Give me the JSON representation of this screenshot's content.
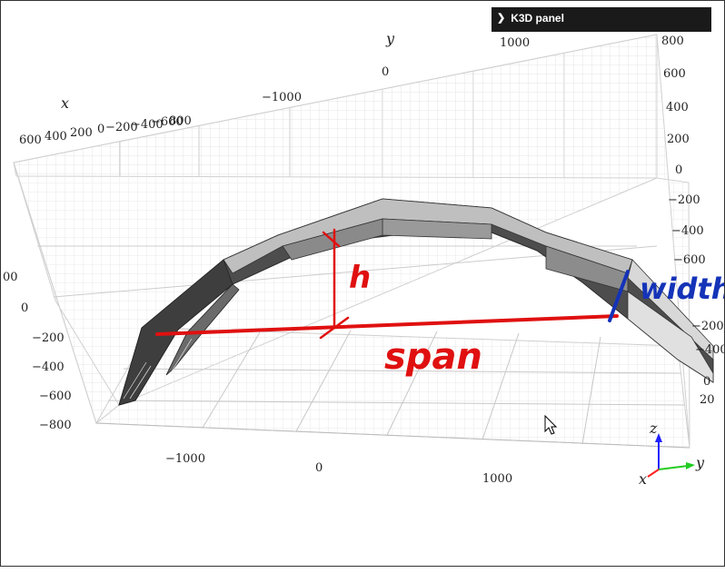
{
  "panel": {
    "title": "K3D panel",
    "icon": "chevron-right-icon"
  },
  "axes": {
    "x_title": "x",
    "y_title": "y",
    "z_title": "z",
    "top_y_ticks": [
      "−1000",
      "0",
      "1000"
    ],
    "top_x_ticks": [
      "600",
      "400",
      "200",
      "0",
      "−200",
      "−400",
      "−600",
      "800"
    ],
    "right_z_ticks": [
      "800",
      "600",
      "400",
      "200",
      "0",
      "−200",
      "−400",
      "−600"
    ],
    "right_cut_ticks": [
      "−200",
      "−400",
      "0",
      "20"
    ],
    "left_z_ticks": [
      "00",
      "0",
      "−200",
      "−400",
      "−600",
      "−800"
    ],
    "bottom_y_ticks": [
      "−1000",
      "0",
      "1000"
    ]
  },
  "annotations": {
    "height_label": "h",
    "span_label": "span",
    "width_label": "width",
    "red_color": "#e01010",
    "blue_color": "#1433b8"
  },
  "orientation_gizmo": {
    "x": "x",
    "y": "y",
    "z": "z",
    "x_color": "#ff2020",
    "y_color": "#22cc22",
    "z_color": "#2020ff"
  },
  "colors": {
    "background": "#ffffff",
    "grid": "#d8d8d8",
    "structure_dark": "#4a4a4a",
    "structure_light": "#c8c8c8"
  }
}
